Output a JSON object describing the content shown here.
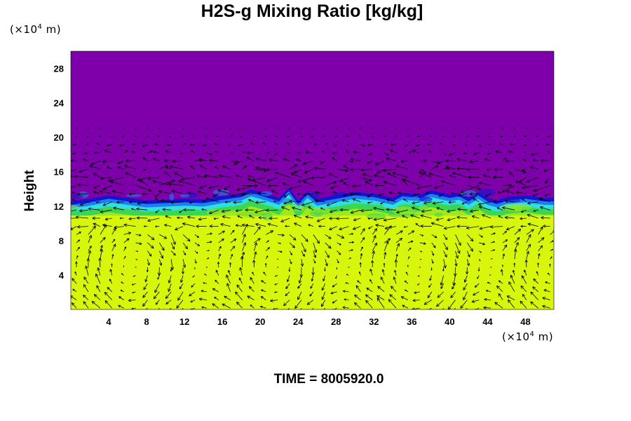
{
  "title": "H2S-g Mixing Ratio [kg/kg]",
  "time_label": "TIME = 8005920.0",
  "y_unit": {
    "prefix": "(×10",
    "exp": "4",
    "suffix": " m)"
  },
  "x_unit": {
    "prefix": "(×10",
    "exp": "4",
    "suffix": " m)"
  },
  "chart_data": {
    "type": "heatmap",
    "title": "H2S-g Mixing Ratio [kg/kg]",
    "xlabel": "",
    "ylabel": "Height",
    "x_unit": "(×10^4 m)",
    "y_unit": "(×10^4 m)",
    "xlim": [
      0,
      51
    ],
    "ylim": [
      0,
      30
    ],
    "x_ticks": [
      "4",
      "8",
      "12",
      "16",
      "20",
      "24",
      "28",
      "32",
      "36",
      "40",
      "44",
      "48"
    ],
    "y_ticks": [
      "4",
      "8",
      "12",
      "16",
      "20",
      "24",
      "28"
    ],
    "grid": false,
    "overlay": "wind vector arrows",
    "colors": {
      "upper_layer": "#7d00aa",
      "lower_layer": "#d8f50c",
      "transition": [
        "#1414d0",
        "#1e7ef0",
        "#30e0e0",
        "#3cd650",
        "#9ee81e"
      ]
    },
    "regions": [
      {
        "name": "upper low-concentration layer",
        "y_range": [
          13,
          30
        ]
      },
      {
        "name": "interface layer",
        "y_range": [
          11,
          14
        ]
      },
      {
        "name": "lower high-concentration layer",
        "y_range": [
          0,
          11
        ]
      }
    ],
    "interface_height": [
      [
        0,
        12.2
      ],
      [
        2,
        12.5
      ],
      [
        4,
        12.9
      ],
      [
        6,
        12.6
      ],
      [
        8,
        12.3
      ],
      [
        10,
        12.4
      ],
      [
        12,
        12.5
      ],
      [
        14,
        12.4
      ],
      [
        16,
        12.8
      ],
      [
        18,
        13.1
      ],
      [
        19,
        13.6
      ],
      [
        20,
        13.3
      ],
      [
        22,
        12.6
      ],
      [
        23,
        13.8
      ],
      [
        24,
        12.3
      ],
      [
        25,
        13.4
      ],
      [
        26,
        12.5
      ],
      [
        28,
        12.9
      ],
      [
        30,
        13.3
      ],
      [
        32,
        13.1
      ],
      [
        34,
        12.6
      ],
      [
        35,
        13.2
      ],
      [
        37,
        13.0
      ],
      [
        38,
        13.5
      ],
      [
        40,
        13.0
      ],
      [
        41,
        13.2
      ],
      [
        42,
        12.6
      ],
      [
        43,
        13.3
      ],
      [
        44,
        12.6
      ],
      [
        45,
        12.3
      ],
      [
        46,
        12.7
      ],
      [
        48,
        12.9
      ],
      [
        50,
        12.6
      ],
      [
        51,
        12.6
      ]
    ],
    "vector_band": [
      0,
      21
    ]
  }
}
